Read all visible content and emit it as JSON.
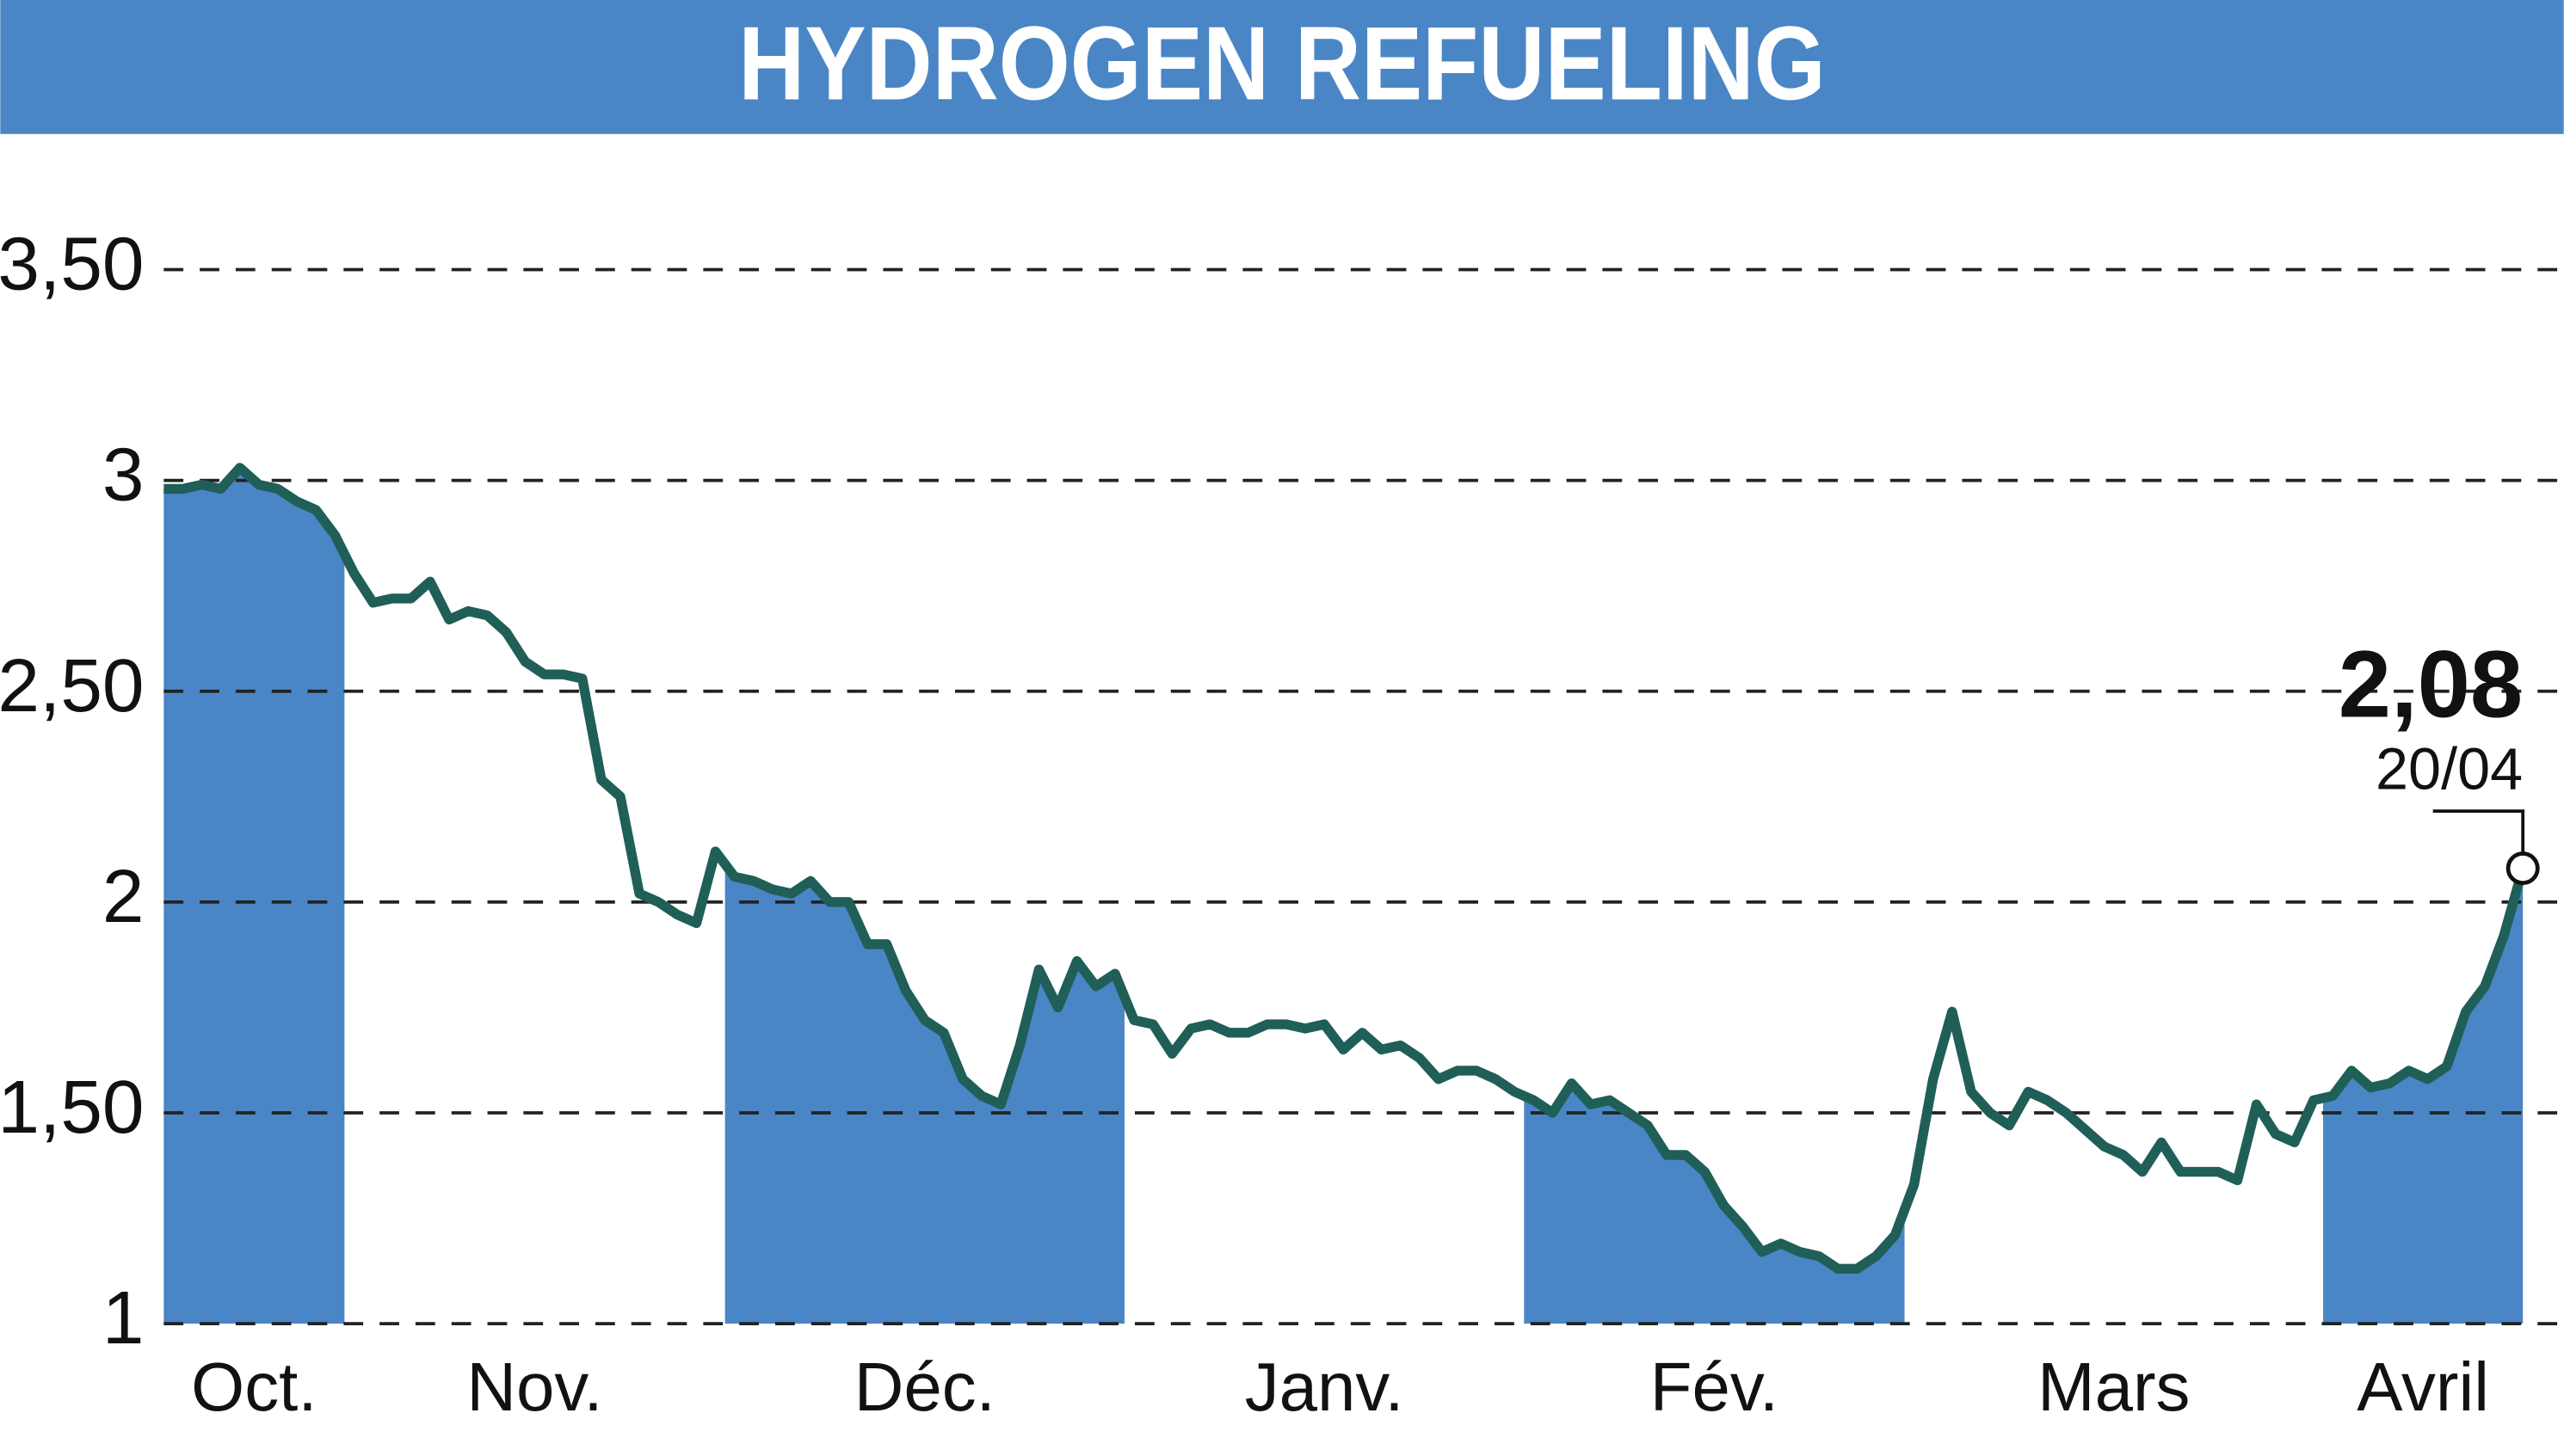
{
  "chart_data": {
    "type": "line",
    "title": "HYDROGEN REFUELING",
    "color": "#1f5f58",
    "band_color": "#4a86c5",
    "months": [
      {
        "label": "Oct.",
        "values": [
          2.98,
          2.98,
          2.99,
          2.98,
          3.03,
          2.99,
          2.98,
          2.95,
          2.93,
          2.87
        ]
      },
      {
        "label": "Nov.",
        "values": [
          2.78,
          2.71,
          2.72,
          2.72,
          2.76,
          2.67,
          2.69,
          2.68,
          2.64,
          2.57,
          2.54,
          2.54,
          2.53,
          2.29,
          2.25,
          2.02,
          2.0,
          1.97,
          1.95,
          2.12
        ]
      },
      {
        "label": "Déc.",
        "values": [
          2.06,
          2.05,
          2.03,
          2.02,
          2.05,
          2.0,
          2.0,
          1.9,
          1.9,
          1.79,
          1.72,
          1.69,
          1.58,
          1.54,
          1.52,
          1.66,
          1.84,
          1.75,
          1.86,
          1.8,
          1.83
        ]
      },
      {
        "label": "Janv.",
        "values": [
          1.72,
          1.71,
          1.64,
          1.7,
          1.71,
          1.69,
          1.69,
          1.71,
          1.71,
          1.7,
          1.71,
          1.65,
          1.69,
          1.65,
          1.66,
          1.63,
          1.58,
          1.6,
          1.6,
          1.58,
          1.55
        ]
      },
      {
        "label": "Fév.",
        "values": [
          1.53,
          1.5,
          1.57,
          1.52,
          1.53,
          1.5,
          1.47,
          1.4,
          1.4,
          1.36,
          1.28,
          1.23,
          1.17,
          1.19,
          1.17,
          1.16,
          1.13,
          1.13,
          1.16,
          1.21
        ]
      },
      {
        "label": "Mars",
        "values": [
          1.33,
          1.58,
          1.74,
          1.55,
          1.5,
          1.47,
          1.55,
          1.53,
          1.5,
          1.46,
          1.42,
          1.4,
          1.36,
          1.43,
          1.36,
          1.36,
          1.36,
          1.34,
          1.52,
          1.45,
          1.43,
          1.53
        ]
      },
      {
        "label": "Avril",
        "values": [
          1.54,
          1.6,
          1.56,
          1.57,
          1.6,
          1.58,
          1.61,
          1.74,
          1.8,
          1.92,
          2.08
        ]
      }
    ],
    "last_value_label": "2,08",
    "last_date": "20/04",
    "ylim": [
      1,
      3.5
    ],
    "yticks": [
      1,
      {
        "value": 1.5,
        "label": "1,50"
      },
      2,
      {
        "value": 2.5,
        "label": "2,50"
      },
      3,
      {
        "value": 3.5,
        "label": "3,50"
      }
    ],
    "grid": true
  }
}
